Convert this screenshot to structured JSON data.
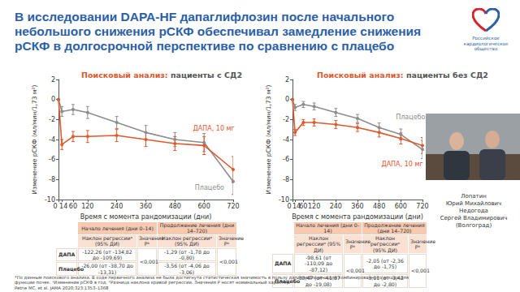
{
  "title": "В исследовании DAPA-HF дапаглифлозин после начального небольшого снижения рСКФ обеспечивал замедление снижения рСКФ в долгосрочной перспективе по сравнению с плацебо",
  "logo": [
    "Российское",
    "кардиологическое",
    "общество"
  ],
  "chart_data": [
    {
      "type": "line",
      "subtitle": "Поисковый анализ: пациенты с СД2",
      "x_label": "Время с момента рандомизации (дни)",
      "y_label": "Изменение рСКФ (мл/мин/1,73 м²)",
      "x": [
        0,
        14,
        60,
        120,
        240,
        360,
        480,
        600,
        720
      ],
      "xlim": [
        0,
        720
      ],
      "xticks": [
        0,
        14,
        60,
        120,
        240,
        360,
        480,
        600,
        720
      ],
      "ylim": [
        -10,
        2
      ],
      "yticks": [
        2,
        0,
        -2,
        -4,
        -6,
        -8,
        -10
      ],
      "grid": false,
      "marker": "circle",
      "series": [
        {
          "name": "Плацебо",
          "color": "#8c8c8c",
          "values": [
            0,
            -1.2,
            -1.0,
            -1.3,
            -2.3,
            -3.3,
            -4.0,
            -4.3,
            -8.2
          ],
          "error": [
            0,
            0.5,
            0.5,
            0.6,
            0.6,
            0.7,
            0.7,
            0.9,
            1.3
          ]
        },
        {
          "name": "ДАПА, 10 мг",
          "color": "#e0582c",
          "values": [
            0,
            -4.5,
            -3.7,
            -3.7,
            -3.6,
            -4.0,
            -4.4,
            -4.6,
            -7.0
          ],
          "error": [
            0,
            0.5,
            0.5,
            0.6,
            0.6,
            0.7,
            0.7,
            0.9,
            1.3
          ]
        }
      ]
    },
    {
      "type": "line",
      "subtitle": "Поисковый анализ: пациенты без СД2",
      "x_label": "Время с момента рандомизации (дни)",
      "y_label": "Изменение рСКФ (мл/мин/1,73 м²)",
      "x": [
        0,
        14,
        60,
        120,
        240,
        360,
        480,
        600,
        720
      ],
      "xlim": [
        0,
        720
      ],
      "xticks": [
        0,
        14,
        60,
        120,
        240,
        360,
        480,
        600,
        720
      ],
      "ylim": [
        -10,
        2
      ],
      "yticks": [
        2,
        0,
        -2,
        -4,
        -6,
        -8,
        -10
      ],
      "grid": false,
      "marker": "circle",
      "series": [
        {
          "name": "Плацебо",
          "color": "#8c8c8c",
          "values": [
            0,
            -0.8,
            -0.5,
            -0.7,
            -1.3,
            -1.9,
            -2.8,
            -3.5,
            -5.0
          ],
          "error": [
            0,
            0.3,
            0.3,
            0.35,
            0.4,
            0.4,
            0.45,
            0.55,
            0.9
          ]
        },
        {
          "name": "ДАПА, 10 мг",
          "color": "#e0582c",
          "values": [
            0,
            -3.3,
            -2.3,
            -2.3,
            -2.5,
            -2.8,
            -3.3,
            -3.9,
            -4.6
          ],
          "error": [
            0,
            0.3,
            0.3,
            0.35,
            0.4,
            0.4,
            0.45,
            0.55,
            0.8
          ]
        }
      ]
    }
  ],
  "tables": [
    {
      "header": [
        "Начало лечения (дни 0–14)",
        "Продолжение лечения (дни 14–720)"
      ],
      "columns": [
        "Наклон регрессииᵃ (95% ДИ)",
        "Значение Pᵇ",
        "Наклон регрессииᵃ (95% ДИ)",
        "Значение Pᵇ"
      ],
      "rows": [
        {
          "label": "ДАПА",
          "early": "-122,26 (от -134,82 до -109,69)",
          "late": "-1,29 (от -1,78 до -0,80)"
        },
        {
          "label": "Плацебо",
          "early": "-26,00 (от -38,70 до -13,31)",
          "late": "-3,56 (от -4,06 до -3,06)"
        }
      ],
      "p_values": [
        "<0,001",
        "<0,001"
      ]
    },
    {
      "header": [
        "Начало лечения (дни 0–14)",
        "Продолжение лечения (дни 14–720)"
      ],
      "columns": [
        "Наклон регрессииᵃ (95% ДИ)",
        "Значение Pᵇ",
        "Наклон регрессииᵃ (95% ДИ)",
        "Значение Pᵇ"
      ],
      "rows": [
        {
          "label": "ДАПА",
          "early": "-98,61 (от -110,09 до -87,12)",
          "late": "-2,05 (от -2,36 до -1,75)"
        },
        {
          "label": "Плацебо",
          "early": "-30,47 (от -41,87 до -19,08)",
          "late": "-3,11 (от -3,42 до -2,80)"
        }
      ],
      "p_values": [
        "<0,001",
        "<0,001"
      ]
    }
  ],
  "footnotes": [
    "*По данным поискового анализа. В ходе первичного анализа не была достигнута статистическая значимость в пользу дапаглифлозина для комбинированного исхода для функции почек. ᵃИзменение рСКФ в год. ᵇРазница наклона кривой регрессии. Значения P носят номинальный характер",
    "Petrie MC, et al. JAMA 2020;323:1353–1368"
  ],
  "speakers": [
    "Лопатин",
    "Юрий Михайлович",
    "Недогода",
    "Сергей Владимирович",
    "(Волгоград)"
  ]
}
